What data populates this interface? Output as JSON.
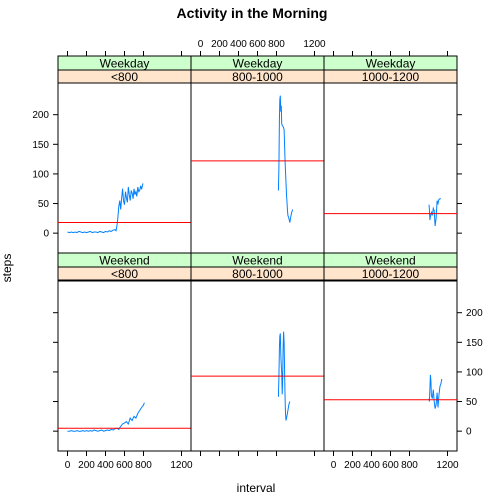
{
  "chart_data": {
    "type": "line",
    "title": "Activity in the Morning",
    "xlabel": "interval",
    "ylabel": "steps",
    "xlim": [
      -100,
      1300
    ],
    "ylim": [
      -20,
      240
    ],
    "x_ticks": [
      0,
      200,
      400,
      600,
      800,
      1200
    ],
    "x_tick_labels": [
      "0",
      "200",
      "400",
      "600",
      "800",
      "1200"
    ],
    "y_ticks": [
      0,
      50,
      100,
      150,
      200
    ],
    "y_tick_labels": [
      "0",
      "50",
      "100",
      "150",
      "200"
    ],
    "grid": false,
    "line_color": "#0080ff",
    "mean_line_color": "#ff0000",
    "strip_top_color": "#ccffcc",
    "strip_bottom_color": "#ffe5cc",
    "panels": [
      {
        "day": "Weekday",
        "range": "<800",
        "mean": 18,
        "points": [
          [
            0,
            2
          ],
          [
            20,
            1
          ],
          [
            40,
            2
          ],
          [
            60,
            1
          ],
          [
            80,
            2
          ],
          [
            100,
            1
          ],
          [
            120,
            3
          ],
          [
            140,
            2
          ],
          [
            160,
            1
          ],
          [
            180,
            2
          ],
          [
            200,
            1
          ],
          [
            220,
            2
          ],
          [
            240,
            3
          ],
          [
            260,
            1
          ],
          [
            280,
            2
          ],
          [
            300,
            2
          ],
          [
            320,
            1
          ],
          [
            340,
            3
          ],
          [
            360,
            2
          ],
          [
            380,
            1
          ],
          [
            400,
            3
          ],
          [
            420,
            2
          ],
          [
            440,
            4
          ],
          [
            460,
            3
          ],
          [
            480,
            5
          ],
          [
            500,
            6
          ],
          [
            510,
            4
          ],
          [
            520,
            12
          ],
          [
            530,
            25
          ],
          [
            540,
            45
          ],
          [
            550,
            55
          ],
          [
            560,
            40
          ],
          [
            570,
            60
          ],
          [
            580,
            75
          ],
          [
            590,
            55
          ],
          [
            600,
            48
          ],
          [
            610,
            70
          ],
          [
            620,
            60
          ],
          [
            630,
            52
          ],
          [
            640,
            78
          ],
          [
            650,
            65
          ],
          [
            660,
            55
          ],
          [
            670,
            72
          ],
          [
            680,
            68
          ],
          [
            690,
            58
          ],
          [
            700,
            75
          ],
          [
            710,
            65
          ],
          [
            720,
            70
          ],
          [
            730,
            62
          ],
          [
            740,
            78
          ],
          [
            750,
            70
          ],
          [
            760,
            72
          ],
          [
            770,
            80
          ],
          [
            780,
            74
          ],
          [
            790,
            82
          ],
          [
            795,
            84
          ]
        ]
      },
      {
        "day": "Weekday",
        "range": "800-1000",
        "mean": 122,
        "points": [
          [
            820,
            72
          ],
          [
            825,
            110
          ],
          [
            830,
            190
          ],
          [
            835,
            225
          ],
          [
            840,
            232
          ],
          [
            845,
            205
          ],
          [
            850,
            215
          ],
          [
            855,
            185
          ],
          [
            860,
            182
          ],
          [
            870,
            180
          ],
          [
            880,
            175
          ],
          [
            890,
            120
          ],
          [
            900,
            85
          ],
          [
            905,
            65
          ],
          [
            910,
            55
          ],
          [
            915,
            40
          ],
          [
            920,
            30
          ],
          [
            930,
            25
          ],
          [
            940,
            18
          ],
          [
            950,
            28
          ],
          [
            960,
            35
          ],
          [
            970,
            40
          ]
        ]
      },
      {
        "day": "Weekday",
        "range": "1000-1200",
        "mean": 33,
        "points": [
          [
            1005,
            48
          ],
          [
            1010,
            40
          ],
          [
            1015,
            22
          ],
          [
            1020,
            28
          ],
          [
            1030,
            35
          ],
          [
            1040,
            30
          ],
          [
            1050,
            42
          ],
          [
            1060,
            38
          ],
          [
            1070,
            12
          ],
          [
            1080,
            25
          ],
          [
            1090,
            55
          ],
          [
            1100,
            50
          ],
          [
            1110,
            57
          ],
          [
            1120,
            58
          ],
          [
            1130,
            58
          ]
        ]
      },
      {
        "day": "Weekend",
        "range": "<800",
        "mean": 5,
        "points": [
          [
            0,
            0
          ],
          [
            20,
            0
          ],
          [
            40,
            1
          ],
          [
            60,
            0
          ],
          [
            80,
            0
          ],
          [
            100,
            1
          ],
          [
            120,
            0
          ],
          [
            140,
            0
          ],
          [
            160,
            1
          ],
          [
            180,
            0
          ],
          [
            200,
            1
          ],
          [
            220,
            0
          ],
          [
            240,
            1
          ],
          [
            260,
            0
          ],
          [
            280,
            2
          ],
          [
            300,
            1
          ],
          [
            320,
            0
          ],
          [
            340,
            1
          ],
          [
            360,
            2
          ],
          [
            380,
            0
          ],
          [
            400,
            1
          ],
          [
            420,
            2
          ],
          [
            440,
            1
          ],
          [
            460,
            3
          ],
          [
            480,
            2
          ],
          [
            500,
            4
          ],
          [
            520,
            5
          ],
          [
            540,
            3
          ],
          [
            560,
            8
          ],
          [
            580,
            12
          ],
          [
            600,
            14
          ],
          [
            620,
            16
          ],
          [
            640,
            12
          ],
          [
            660,
            22
          ],
          [
            680,
            18
          ],
          [
            700,
            25
          ],
          [
            720,
            22
          ],
          [
            740,
            30
          ],
          [
            760,
            35
          ],
          [
            780,
            40
          ],
          [
            800,
            44
          ],
          [
            810,
            48
          ]
        ]
      },
      {
        "day": "Weekend",
        "range": "800-1000",
        "mean": 93,
        "points": [
          [
            820,
            58
          ],
          [
            825,
            90
          ],
          [
            830,
            140
          ],
          [
            835,
            160
          ],
          [
            840,
            165
          ],
          [
            845,
            130
          ],
          [
            850,
            110
          ],
          [
            855,
            100
          ],
          [
            860,
            62
          ],
          [
            865,
            90
          ],
          [
            870,
            140
          ],
          [
            875,
            168
          ],
          [
            880,
            150
          ],
          [
            885,
            100
          ],
          [
            890,
            55
          ],
          [
            895,
            30
          ],
          [
            900,
            18
          ],
          [
            910,
            25
          ],
          [
            920,
            35
          ],
          [
            930,
            45
          ],
          [
            940,
            50
          ]
        ]
      },
      {
        "day": "Weekend",
        "range": "1000-1200",
        "mean": 53,
        "points": [
          [
            1005,
            55
          ],
          [
            1010,
            50
          ],
          [
            1015,
            72
          ],
          [
            1020,
            95
          ],
          [
            1025,
            85
          ],
          [
            1030,
            60
          ],
          [
            1040,
            55
          ],
          [
            1050,
            70
          ],
          [
            1060,
            50
          ],
          [
            1070,
            38
          ],
          [
            1080,
            45
          ],
          [
            1090,
            65
          ],
          [
            1100,
            40
          ],
          [
            1110,
            60
          ],
          [
            1120,
            75
          ],
          [
            1130,
            80
          ],
          [
            1140,
            88
          ]
        ]
      }
    ]
  }
}
